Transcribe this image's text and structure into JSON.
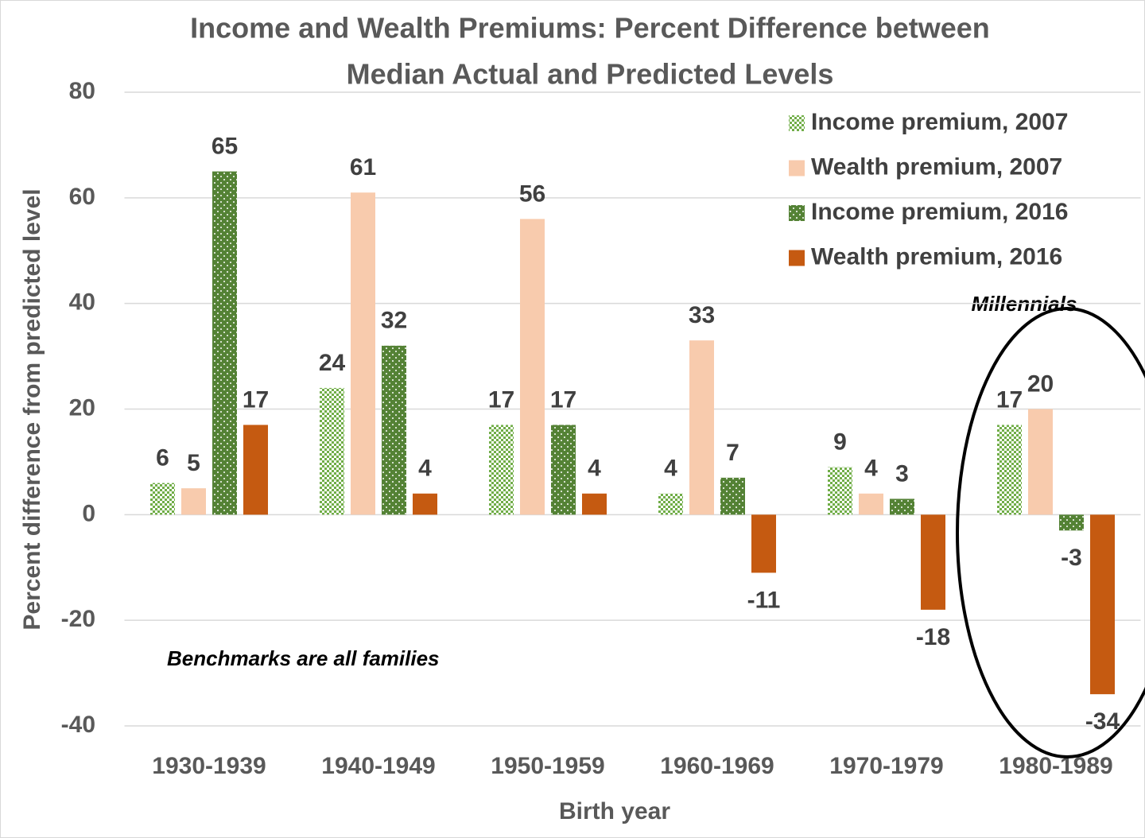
{
  "chart_data": {
    "type": "bar",
    "title": [
      "Income and Wealth Premiums: Percent Difference between",
      "Median Actual and Predicted Levels"
    ],
    "xlabel": "Birth year",
    "ylabel": "Percent difference from predicted level",
    "categories": [
      "1930-1939",
      "1940-1949",
      "1950-1959",
      "1960-1969",
      "1970-1979",
      "1980-1989"
    ],
    "series": [
      {
        "name": "Income premium, 2007",
        "color": "#70ad47",
        "pattern": "checker",
        "values": [
          6,
          24,
          17,
          4,
          9,
          17
        ]
      },
      {
        "name": "Wealth premium, 2007",
        "color": "#f8cbad",
        "values": [
          5,
          61,
          56,
          33,
          4,
          20
        ]
      },
      {
        "name": "Income premium, 2016",
        "color": "#548235",
        "pattern": "dots",
        "values": [
          65,
          32,
          17,
          7,
          3,
          -3
        ]
      },
      {
        "name": "Wealth premium, 2016",
        "color": "#c55a11",
        "values": [
          17,
          4,
          4,
          -11,
          -18,
          -34
        ]
      }
    ],
    "ylim": [
      -40,
      80
    ],
    "yticks": [
      -40,
      -20,
      0,
      20,
      40,
      60,
      80
    ],
    "grid": true,
    "legend": "upper right",
    "annotations": [
      "Benchmarks are all families",
      "Millennials"
    ]
  }
}
